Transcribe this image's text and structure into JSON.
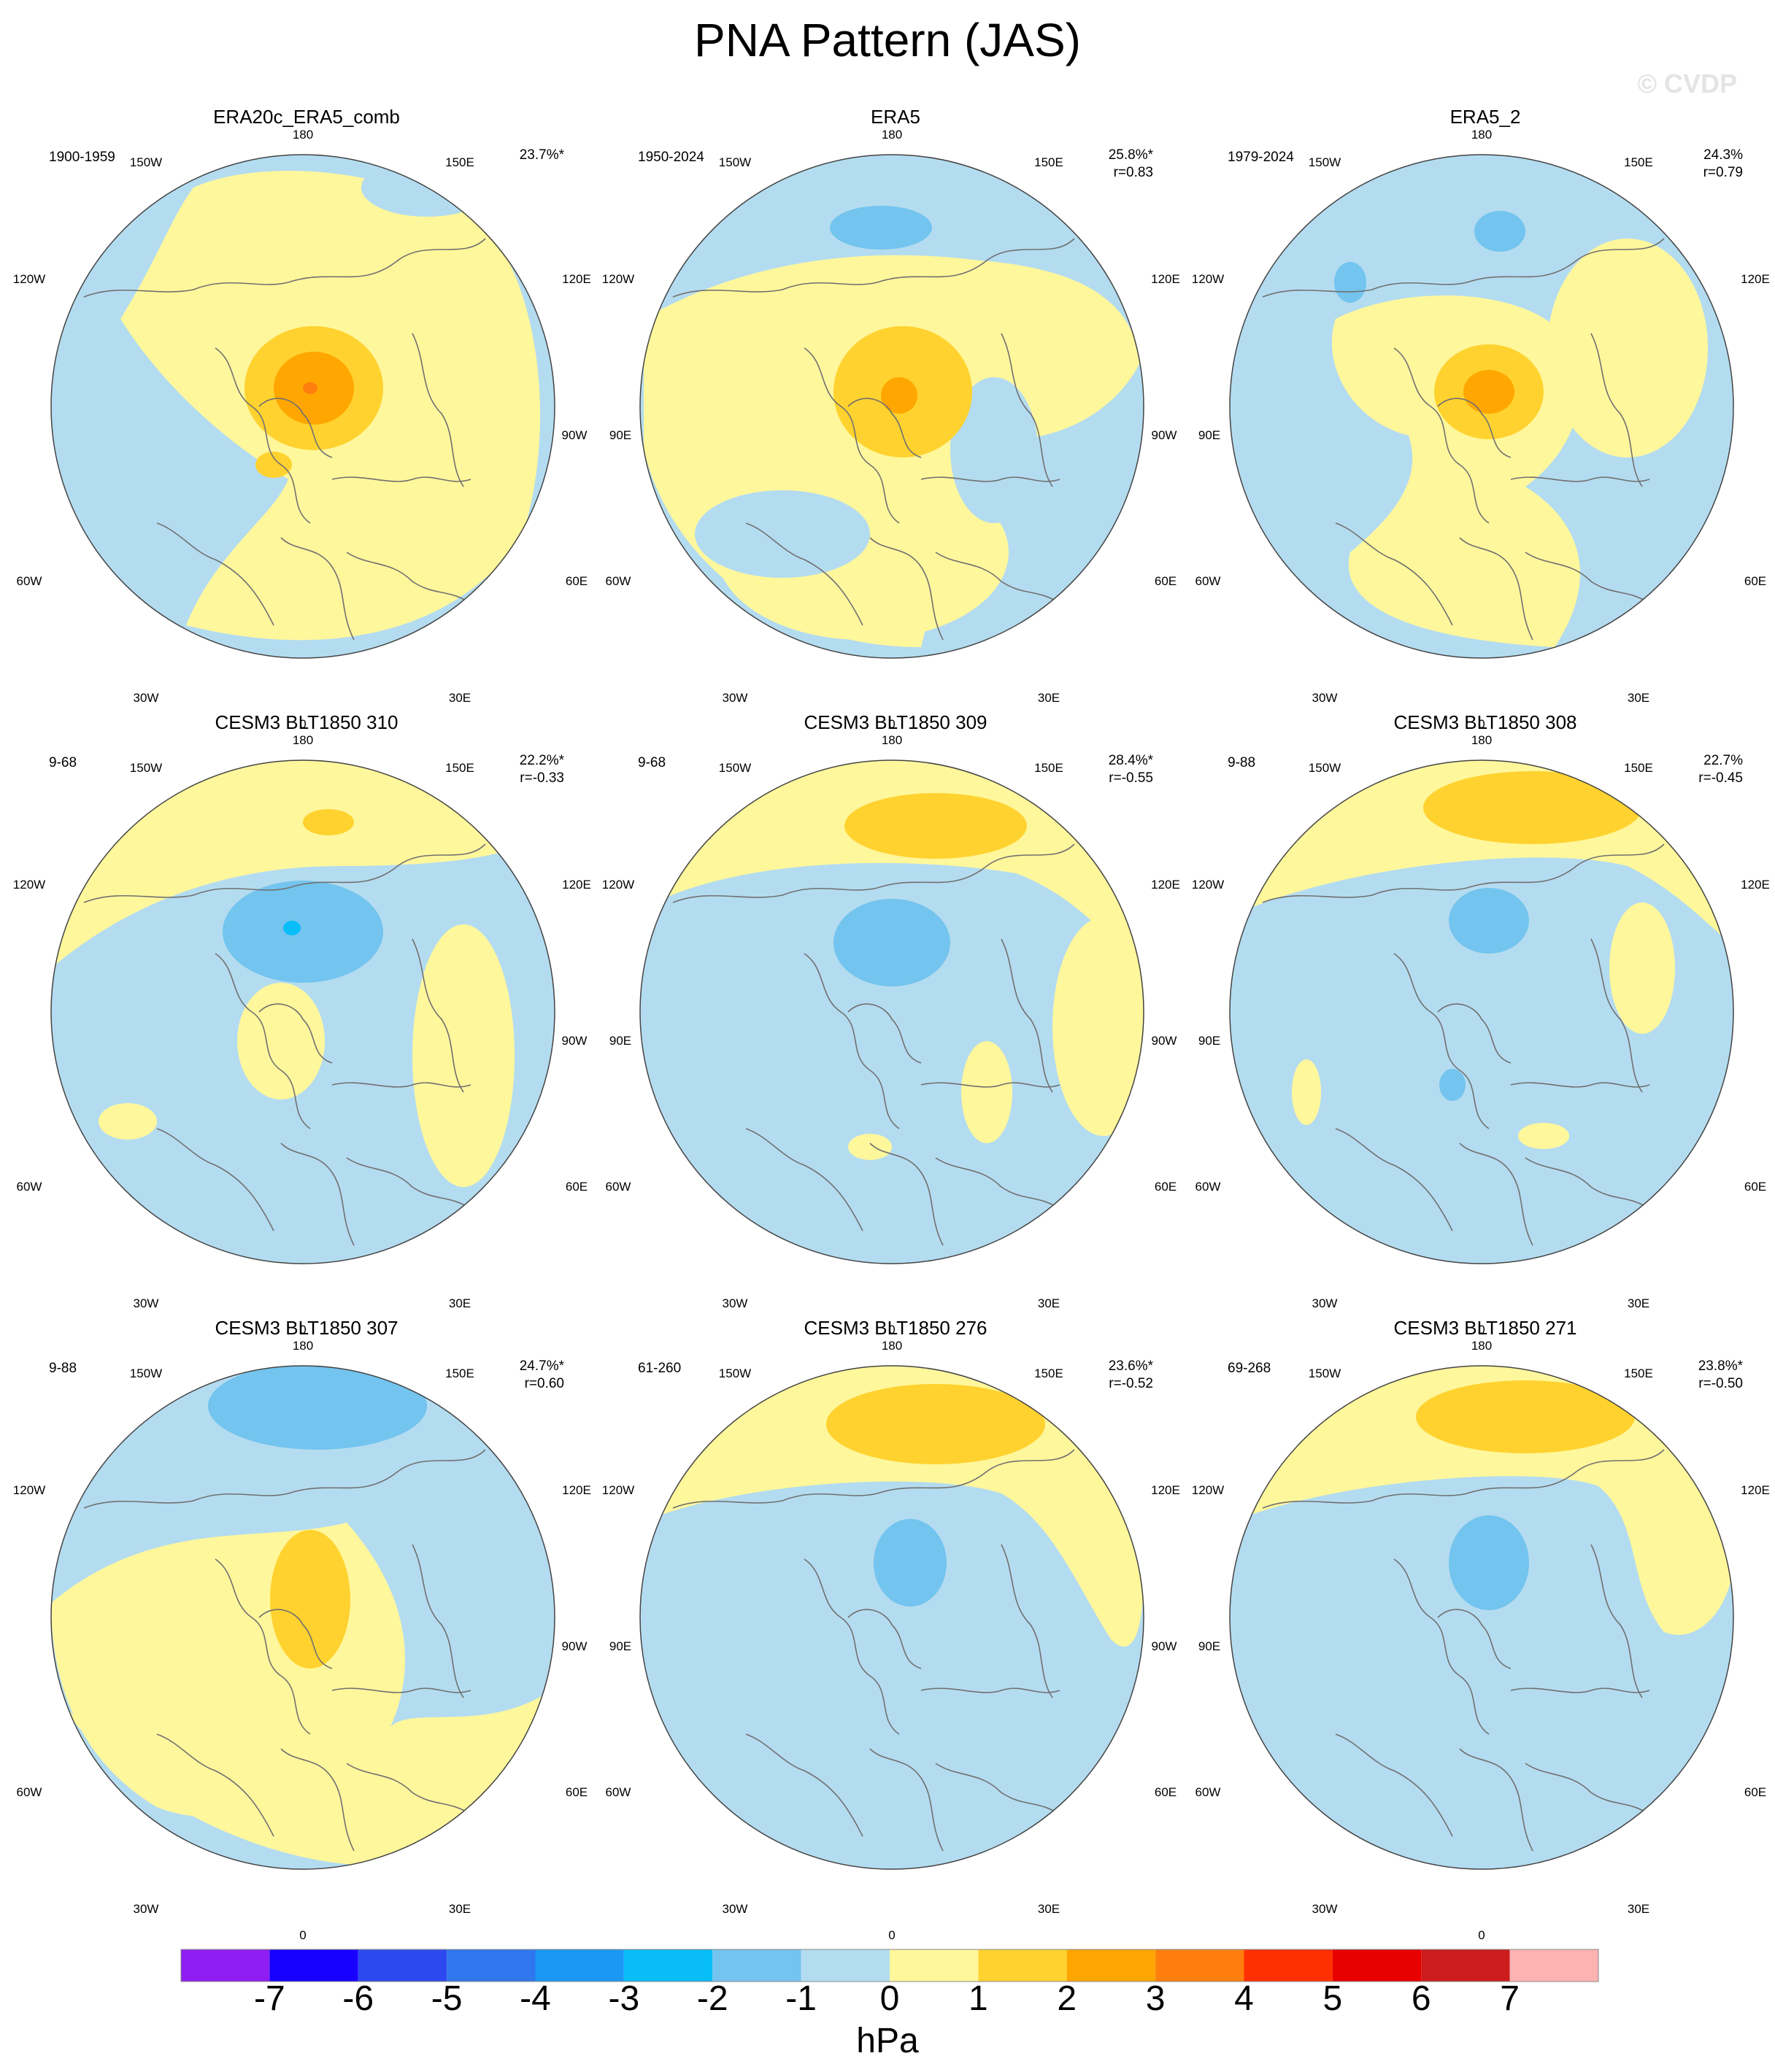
{
  "title": "PNA Pattern (JAS)",
  "watermark": "© CVDP",
  "colors": {
    "neg1": "#b4dcf0",
    "neg2": "#73c4ee",
    "neg3": "#08bdf8",
    "neg4": "#1b97f4",
    "pos1": "#fff79c",
    "pos2": "#ffd22f",
    "pos3": "#ffa700",
    "pos4": "#ff7e0e",
    "coast": "#707070"
  },
  "longitude_labels": {
    "top": "180",
    "top_right": "150E",
    "upper_right": "120E",
    "right": "90E",
    "lower_right": "60E",
    "bottom_right": "30E",
    "bottom": "0",
    "bottom_left": "30W",
    "lower_left": "60W",
    "left": "90W",
    "upper_left": "120W",
    "top_left": "150W"
  },
  "panels": [
    {
      "title": "ERA20c_ERA5_comb",
      "period": "1900-1959",
      "pct": "23.7%*",
      "r": ""
    },
    {
      "title": "ERA5",
      "period": "1950-2024",
      "pct": "25.8%*",
      "r": "r=0.83"
    },
    {
      "title": "ERA5_2",
      "period": "1979-2024",
      "pct": "24.3%",
      "r": "r=0.79"
    },
    {
      "title": "CESM3 BLT1850 310",
      "period": "9-68",
      "pct": "22.2%*",
      "r": "r=-0.33"
    },
    {
      "title": "CESM3 BLT1850 309",
      "period": "9-68",
      "pct": "28.4%*",
      "r": "r=-0.55"
    },
    {
      "title": "CESM3 BLT1850 308",
      "period": "9-88",
      "pct": "22.7%",
      "r": "r=-0.45"
    },
    {
      "title": "CESM3 BLT1850 307",
      "period": "9-88",
      "pct": "24.7%*",
      "r": "r=0.60"
    },
    {
      "title": "CESM3 BLT1850 276",
      "period": "61-260",
      "pct": "23.6%*",
      "r": "r=-0.52"
    },
    {
      "title": "CESM3 BLT1850 271",
      "period": "69-268",
      "pct": "23.8%*",
      "r": "r=-0.50"
    }
  ],
  "colorbar": {
    "colors": [
      "#8f1ef2",
      "#1800ff",
      "#2d48ee",
      "#3076ec",
      "#1b97f4",
      "#08bdf8",
      "#73c4ee",
      "#b4dcf0",
      "#fff79c",
      "#ffd22f",
      "#ffa700",
      "#ff7e0e",
      "#ff3000",
      "#e80000",
      "#cc1c1c",
      "#ffb2b2"
    ],
    "labels": [
      "-7",
      "-6",
      "-5",
      "-4",
      "-3",
      "-2",
      "-1",
      "0",
      "1",
      "2",
      "3",
      "4",
      "5",
      "6",
      "7"
    ],
    "units": "hPa"
  }
}
